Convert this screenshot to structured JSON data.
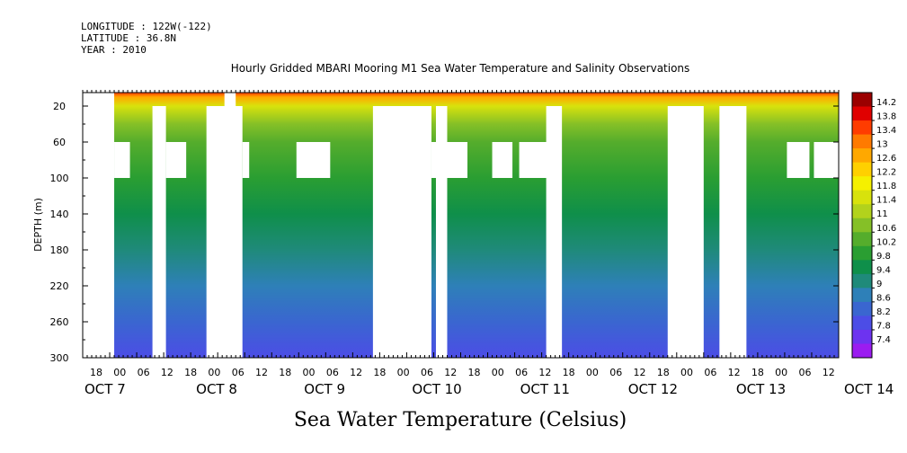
{
  "header": {
    "longitude": "LONGITUDE : 122W(-122)",
    "latitude": "LATITUDE : 36.8N",
    "year": "YEAR : 2010"
  },
  "chart_data": {
    "type": "heatmap",
    "title": "Hourly Gridded MBARI Mooring M1 Sea Water Temperature and Salinity Observations",
    "xlabel": "",
    "ylabel": "DEPTH (m)",
    "variable_label": "Sea Water Temperature (Celsius)",
    "y_axis": {
      "range": [
        300,
        5
      ],
      "inverted": true,
      "ticks": [
        20,
        60,
        100,
        140,
        180,
        220,
        260,
        300
      ]
    },
    "x_axis": {
      "range_hours": [
        0,
        168
      ],
      "hour_ticks": [
        "18",
        "00",
        "06",
        "12",
        "18",
        "00",
        "06",
        "12",
        "18",
        "00",
        "06",
        "12",
        "18",
        "00",
        "06",
        "12",
        "18",
        "00",
        "06",
        "12",
        "18",
        "00",
        "06",
        "12",
        "18",
        "00",
        "06",
        "12",
        "18",
        "00",
        "06",
        "12"
      ],
      "date_labels": [
        "OCT  7",
        "OCT  8",
        "OCT  9",
        "OCT 10",
        "OCT 11",
        "OCT 12",
        "OCT 13",
        "OCT 14"
      ]
    },
    "colorbar": {
      "levels": [
        7.4,
        7.8,
        8.2,
        8.6,
        9,
        9.4,
        9.8,
        10.2,
        10.6,
        11,
        11.4,
        11.8,
        12.2,
        12.6,
        13,
        13.4,
        13.8,
        14.2
      ],
      "labels": [
        "14.2",
        "13.8",
        "13.4",
        "13",
        "12.6",
        "12.2",
        "11.8",
        "11.4",
        "11",
        "10.6",
        "10.2",
        "9.8",
        "9.4",
        "9",
        "8.6",
        "8.2",
        "7.8",
        "7.4"
      ],
      "colors": [
        "#9b1cf0",
        "#6d33f0",
        "#4c4de6",
        "#3a66d0",
        "#2e80b8",
        "#1f8a7a",
        "#0f8f4a",
        "#2a9e32",
        "#55ad2c",
        "#85c027",
        "#b2d21c",
        "#d8e20c",
        "#f5f000",
        "#ffd000",
        "#ffa800",
        "#ff7a00",
        "#ff3c00",
        "#e00000",
        "#9b0000"
      ]
    },
    "profile": [
      {
        "depth": 5,
        "temp": 13.4
      },
      {
        "depth": 10,
        "temp": 12.6
      },
      {
        "depth": 20,
        "temp": 11.4
      },
      {
        "depth": 40,
        "temp": 10.6
      },
      {
        "depth": 60,
        "temp": 10.2
      },
      {
        "depth": 100,
        "temp": 9.8
      },
      {
        "depth": 140,
        "temp": 9.4
      },
      {
        "depth": 180,
        "temp": 9.0
      },
      {
        "depth": 220,
        "temp": 8.6
      },
      {
        "depth": 260,
        "temp": 8.2
      },
      {
        "depth": 300,
        "temp": 7.8
      }
    ],
    "missing": [
      {
        "h0": 0,
        "h1": 7,
        "d0": 5,
        "d1": 300
      },
      {
        "h0": 7,
        "h1": 10.5,
        "d0": 60,
        "d1": 100
      },
      {
        "h0": 15.5,
        "h1": 18.5,
        "d0": 20,
        "d1": 300
      },
      {
        "h0": 18.5,
        "h1": 23,
        "d0": 60,
        "d1": 100
      },
      {
        "h0": 27.5,
        "h1": 35.5,
        "d0": 20,
        "d1": 300
      },
      {
        "h0": 35.5,
        "h1": 37,
        "d0": 60,
        "d1": 100
      },
      {
        "h0": 31.5,
        "h1": 34,
        "d0": 5,
        "d1": 20
      },
      {
        "h0": 47.5,
        "h1": 55,
        "d0": 60,
        "d1": 100
      },
      {
        "h0": 64.5,
        "h1": 77.5,
        "d0": 20,
        "d1": 300
      },
      {
        "h0": 77.5,
        "h1": 85.5,
        "d0": 60,
        "d1": 100
      },
      {
        "h0": 78.5,
        "h1": 81,
        "d0": 20,
        "d1": 300
      },
      {
        "h0": 91,
        "h1": 95.5,
        "d0": 60,
        "d1": 100
      },
      {
        "h0": 97,
        "h1": 105.5,
        "d0": 60,
        "d1": 100
      },
      {
        "h0": 103,
        "h1": 106.5,
        "d0": 20,
        "d1": 300
      },
      {
        "h0": 130,
        "h1": 138,
        "d0": 20,
        "d1": 300
      },
      {
        "h0": 141.5,
        "h1": 147.5,
        "d0": 20,
        "d1": 300
      },
      {
        "h0": 156.5,
        "h1": 161.5,
        "d0": 60,
        "d1": 100
      },
      {
        "h0": 162.5,
        "h1": 168,
        "d0": 60,
        "d1": 100
      }
    ]
  }
}
